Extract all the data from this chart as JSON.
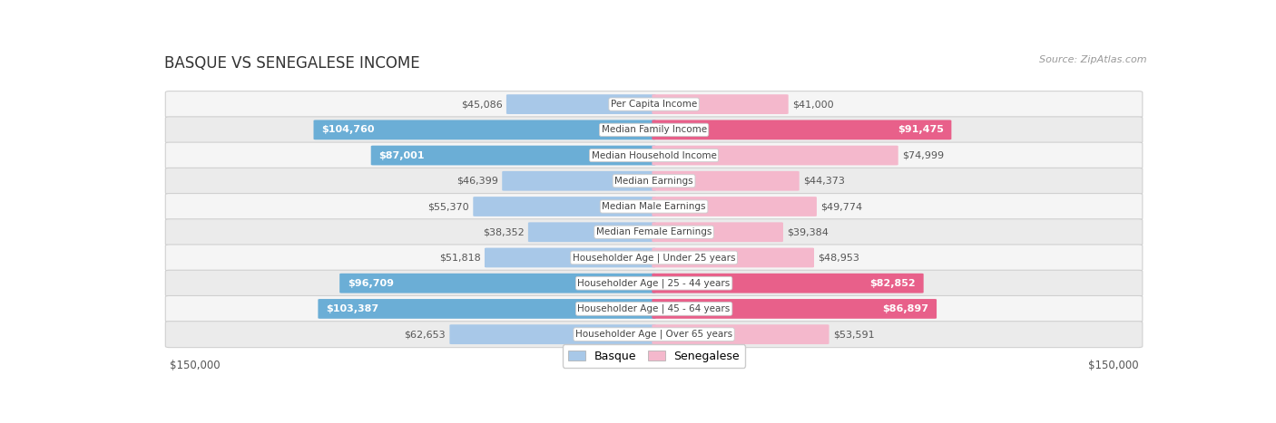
{
  "title": "BASQUE VS SENEGALESE INCOME",
  "source": "Source: ZipAtlas.com",
  "categories": [
    "Per Capita Income",
    "Median Family Income",
    "Median Household Income",
    "Median Earnings",
    "Median Male Earnings",
    "Median Female Earnings",
    "Householder Age | Under 25 years",
    "Householder Age | 25 - 44 years",
    "Householder Age | 45 - 64 years",
    "Householder Age | Over 65 years"
  ],
  "basque_values": [
    45086,
    104760,
    87001,
    46399,
    55370,
    38352,
    51818,
    96709,
    103387,
    62653
  ],
  "senegalese_values": [
    41000,
    91475,
    74999,
    44373,
    49774,
    39384,
    48953,
    82852,
    86897,
    53591
  ],
  "basque_labels": [
    "$45,086",
    "$104,760",
    "$87,001",
    "$46,399",
    "$55,370",
    "$38,352",
    "$51,818",
    "$96,709",
    "$103,387",
    "$62,653"
  ],
  "senegalese_labels": [
    "$41,000",
    "$91,475",
    "$74,999",
    "$44,373",
    "$49,774",
    "$39,384",
    "$48,953",
    "$82,852",
    "$86,897",
    "$53,591"
  ],
  "basque_color_light": "#A8C8E8",
  "basque_color_dark": "#6BAED6",
  "senegalese_color_light": "#F4B8CC",
  "senegalese_color_dark": "#E8608A",
  "max_value": 150000,
  "bg_color": "#ffffff",
  "row_colors": [
    "#f5f5f5",
    "#ebebeb"
  ],
  "title_fontsize": 12,
  "source_fontsize": 8,
  "value_fontsize": 8,
  "cat_fontsize": 7.5,
  "legend_fontsize": 9,
  "basque_inside_threshold": 75000,
  "senegalese_inside_threshold": 75000
}
